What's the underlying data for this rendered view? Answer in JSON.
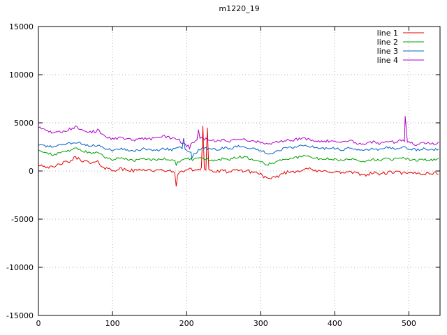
{
  "page": {
    "background": "#ffffff"
  },
  "chart_data": {
    "type": "line",
    "title": "m1220_19",
    "xlabel": "",
    "ylabel": "",
    "xlim": [
      0,
      542
    ],
    "ylim": [
      -15000,
      15000
    ],
    "xticks": [
      0,
      100,
      200,
      300,
      400,
      500
    ],
    "yticks": [
      -15000,
      -10000,
      -5000,
      0,
      5000,
      10000,
      15000
    ],
    "grid": true,
    "grid_style": "dotted",
    "grid_color": "#b0b0b0",
    "border_color": "#000000",
    "legend_position": "top-right-inside",
    "x_step": 10,
    "series": [
      {
        "name": "line 1",
        "color": "#e60000",
        "noise": 180,
        "values": [
          700,
          500,
          300,
          800,
          900,
          1400,
          1100,
          800,
          900,
          300,
          100,
          200,
          100,
          0,
          200,
          100,
          0,
          100,
          -100,
          -300,
          200,
          100,
          300,
          100,
          -100,
          0,
          -100,
          100,
          0,
          -100,
          -300,
          -900,
          -700,
          -200,
          -100,
          0,
          300,
          100,
          -100,
          0,
          -100,
          -200,
          -100,
          -300,
          -400,
          -200,
          -300,
          -200,
          -100,
          -200,
          -300,
          -200,
          -300,
          -200,
          -300
        ],
        "spikes": [
          {
            "x": 186,
            "y": -1600
          },
          {
            "x": 222,
            "y": 4700
          },
          {
            "x": 228,
            "y": 4500
          }
        ]
      },
      {
        "name": "line 2",
        "color": "#00a000",
        "noise": 130,
        "values": [
          2100,
          1900,
          1700,
          1900,
          2100,
          2400,
          2100,
          1800,
          1900,
          1400,
          1200,
          1300,
          1200,
          1100,
          1300,
          1200,
          1100,
          1300,
          1100,
          900,
          1300,
          1200,
          1400,
          1200,
          1100,
          1300,
          1200,
          1500,
          1400,
          1200,
          900,
          700,
          900,
          1200,
          1300,
          1400,
          1600,
          1400,
          1200,
          1300,
          1200,
          1100,
          1300,
          1100,
          1000,
          1200,
          1100,
          1300,
          1200,
          1400,
          1200,
          1100,
          1200,
          1100,
          1200
        ],
        "spikes": [
          {
            "x": 186,
            "y": 600
          }
        ]
      },
      {
        "name": "line 3",
        "color": "#0060c8",
        "noise": 130,
        "values": [
          2800,
          2600,
          2500,
          2700,
          2800,
          3000,
          2800,
          2600,
          2700,
          2300,
          2200,
          2300,
          2200,
          2100,
          2300,
          2200,
          2100,
          2300,
          2200,
          2600,
          2200,
          1700,
          2400,
          2300,
          2200,
          2400,
          2300,
          2600,
          2500,
          2300,
          2100,
          1800,
          2000,
          2300,
          2400,
          2500,
          2700,
          2500,
          2300,
          2400,
          2300,
          2200,
          2400,
          2200,
          2100,
          2300,
          2200,
          2400,
          2300,
          2500,
          2300,
          2200,
          2300,
          2200,
          2300
        ],
        "spikes": [
          {
            "x": 196,
            "y": 3400
          },
          {
            "x": 207,
            "y": 1300
          }
        ]
      },
      {
        "name": "line 4",
        "color": "#b000c8",
        "noise": 160,
        "values": [
          4500,
          4200,
          3900,
          4100,
          4300,
          4600,
          4300,
          4000,
          4200,
          3600,
          3300,
          3400,
          3300,
          3200,
          3400,
          3300,
          3500,
          3600,
          3400,
          3200,
          2600,
          3000,
          3400,
          3300,
          3100,
          3200,
          3100,
          3300,
          3200,
          3100,
          2900,
          2800,
          3000,
          3100,
          3200,
          3300,
          3400,
          3200,
          3000,
          3100,
          3000,
          2900,
          3100,
          2900,
          2800,
          3000,
          2900,
          3100,
          3000,
          3200,
          2900,
          2800,
          2900,
          2800,
          2900
        ],
        "spikes": [
          {
            "x": 204,
            "y": 2300
          },
          {
            "x": 216,
            "y": 4300
          },
          {
            "x": 495,
            "y": 5700
          }
        ]
      }
    ]
  }
}
